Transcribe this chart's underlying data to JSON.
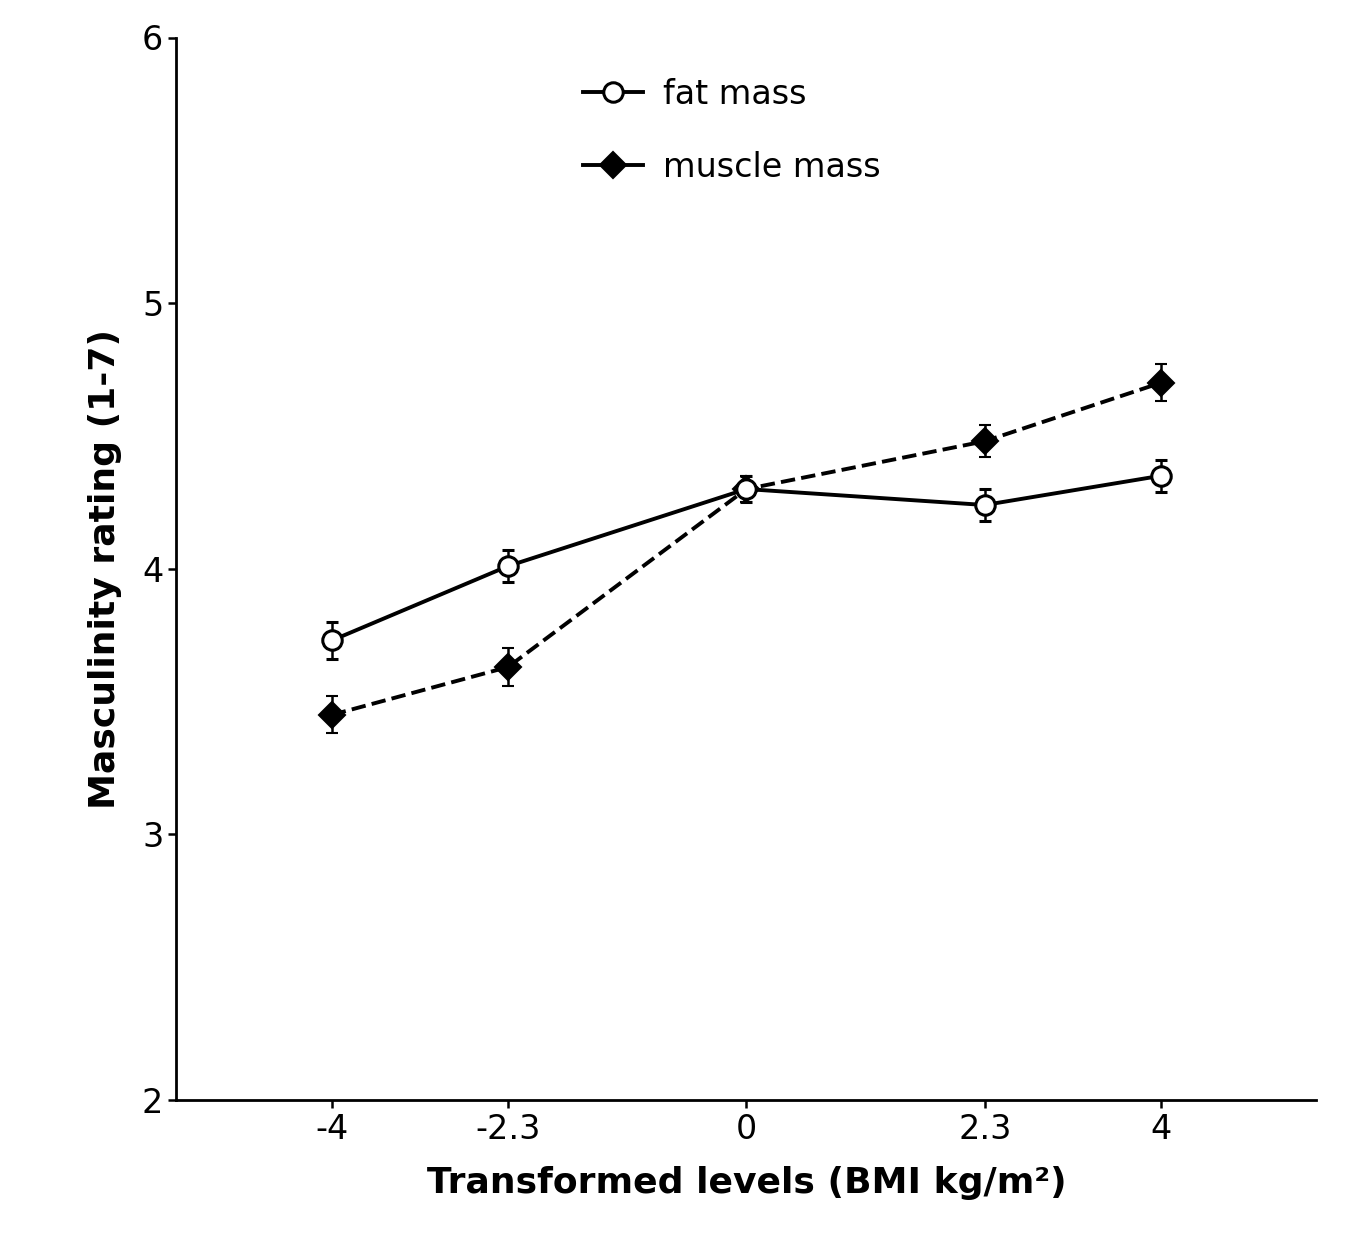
{
  "x_values": [
    -4,
    -2.3,
    0,
    2.3,
    4
  ],
  "x_tick_labels": [
    "-4",
    "-2.3",
    "0",
    "2.3",
    "4"
  ],
  "fat_mass_y": [
    3.73,
    4.01,
    4.3,
    4.24,
    4.35
  ],
  "fat_mass_yerr": [
    0.07,
    0.06,
    0.05,
    0.06,
    0.06
  ],
  "muscle_mass_y": [
    3.45,
    3.63,
    4.3,
    4.48,
    4.7
  ],
  "muscle_mass_yerr": [
    0.07,
    0.07,
    0.05,
    0.06,
    0.07
  ],
  "xlabel": "Transformed levels (BMI kg/m²)",
  "ylabel": "Masculinity rating (1-7)",
  "ylim": [
    2.0,
    6.0
  ],
  "yticks": [
    2,
    3,
    4,
    5,
    6
  ],
  "legend_fat_label": "fat mass",
  "legend_muscle_label": "muscle mass",
  "background_color": "#ffffff",
  "line_color": "#000000",
  "label_fontsize": 26,
  "tick_fontsize": 24,
  "legend_fontsize": 24,
  "linewidth": 2.8,
  "markersize_fat": 14,
  "markersize_muscle": 13,
  "capsize": 4,
  "elinewidth": 1.8,
  "xlim": [
    -5.5,
    5.5
  ]
}
